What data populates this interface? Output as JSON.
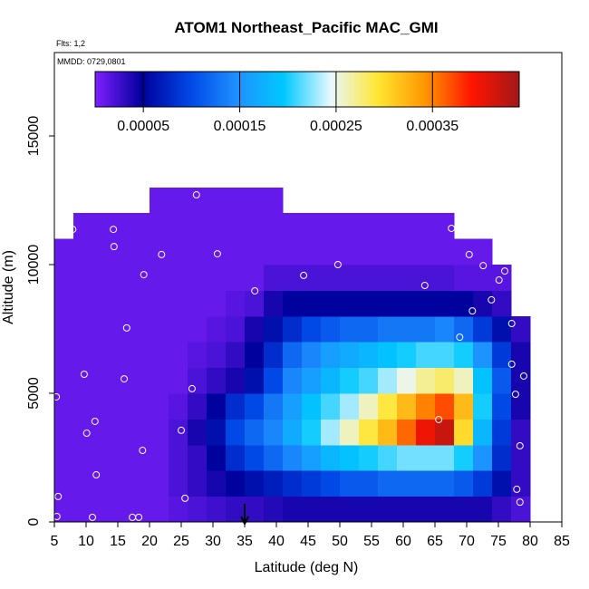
{
  "chart_data": {
    "type": "heatmap",
    "title": "ATOM1 Northeast_Pacific MAC_GMI",
    "annotations": [
      "Flts: 1,2",
      "MMDD: 0729,0801"
    ],
    "xlabel": "Latitude (deg N)",
    "ylabel": "Altitude (m)",
    "xlim": [
      5,
      85
    ],
    "ylim": [
      0,
      18240
    ],
    "xticks": [
      5,
      10,
      15,
      20,
      25,
      30,
      35,
      40,
      45,
      50,
      55,
      60,
      65,
      70,
      75,
      80,
      85
    ],
    "yticks": [
      0,
      5000,
      10000,
      15000
    ],
    "xbins": [
      5,
      8,
      11,
      14,
      17,
      20,
      23,
      26,
      29,
      32,
      35,
      38,
      41,
      44,
      47,
      50,
      53,
      56,
      59,
      62,
      65,
      68,
      71,
      74,
      77,
      80
    ],
    "ybins": [
      0,
      1000,
      2000,
      3000,
      4000,
      5000,
      6000,
      7000,
      8000,
      9000,
      10000,
      11000,
      12000,
      13000
    ],
    "z": [
      [
        1e-05,
        1e-05,
        1e-05,
        1e-05,
        1e-05,
        1e-05,
        1.5e-05,
        2e-05,
        2.5e-05,
        3e-05,
        3e-05,
        3.5e-05,
        4e-05,
        4e-05,
        4e-05,
        4e-05,
        4e-05,
        4e-05,
        4e-05,
        4e-05,
        4e-05,
        4e-05,
        4e-05,
        3e-05,
        2e-05
      ],
      [
        1e-05,
        1e-05,
        1e-05,
        1e-05,
        1e-05,
        1e-05,
        2e-05,
        3e-05,
        4e-05,
        5e-05,
        6e-05,
        7e-05,
        8e-05,
        9e-05,
        0.0001,
        0.00011,
        0.00011,
        0.00012,
        0.00012,
        0.00012,
        0.00012,
        0.00011,
        9e-05,
        6e-05,
        3e-05
      ],
      [
        1e-05,
        1e-05,
        1e-05,
        1e-05,
        1e-05,
        1e-05,
        2e-05,
        3e-05,
        5e-05,
        8e-05,
        0.0001,
        0.00012,
        0.00014,
        0.00016,
        0.00018,
        0.00019,
        0.0002,
        0.00021,
        0.00022,
        0.00022,
        0.00022,
        0.0002,
        0.00015,
        8e-05,
        3e-05
      ],
      [
        1e-05,
        1e-05,
        1e-05,
        1e-05,
        1e-05,
        1e-05,
        2e-05,
        4e-05,
        6e-05,
        0.0001,
        0.00012,
        0.00014,
        0.00017,
        0.0002,
        0.00023,
        0.00026,
        0.00029,
        0.00032,
        0.00036,
        0.0004,
        0.00042,
        0.0003,
        0.00018,
        9e-05,
        3e-05
      ],
      [
        1e-05,
        1e-05,
        1e-05,
        1e-05,
        1e-05,
        1e-05,
        1.5e-05,
        3e-05,
        5e-05,
        8e-05,
        0.0001,
        0.00013,
        0.00016,
        0.00019,
        0.00021,
        0.00023,
        0.00026,
        0.00029,
        0.00032,
        0.00035,
        0.00037,
        0.00032,
        0.0002,
        0.0001,
        4e-05
      ],
      [
        1e-05,
        1e-05,
        1e-05,
        1e-05,
        1e-05,
        1e-05,
        1e-05,
        2e-05,
        3e-05,
        4e-05,
        6e-05,
        0.0001,
        0.00014,
        0.00016,
        0.00018,
        0.0002,
        0.00021,
        0.00023,
        0.00025,
        0.00027,
        0.00028,
        0.00026,
        0.00019,
        0.00011,
        4e-05
      ],
      [
        1e-05,
        1e-05,
        1e-05,
        1e-05,
        1e-05,
        1e-05,
        1e-05,
        1.5e-05,
        2e-05,
        3e-05,
        5e-05,
        8e-05,
        0.00012,
        0.00014,
        0.00016,
        0.00017,
        0.00018,
        0.00019,
        0.0002,
        0.00021,
        0.00021,
        0.0002,
        0.00015,
        9e-05,
        4e-05
      ],
      [
        1e-05,
        1e-05,
        1e-05,
        1e-05,
        1e-05,
        1e-05,
        1e-05,
        1e-05,
        1.5e-05,
        2e-05,
        4e-05,
        6e-05,
        8e-05,
        0.0001,
        0.00011,
        0.00012,
        0.00012,
        0.00013,
        0.00013,
        0.00013,
        0.00014,
        0.00012,
        9e-05,
        6e-05,
        3e-05
      ],
      [
        1e-05,
        1e-05,
        1e-05,
        1e-05,
        1e-05,
        1e-05,
        1e-05,
        1e-05,
        1e-05,
        1.5e-05,
        2e-05,
        4e-05,
        5e-05,
        5e-05,
        5e-05,
        5e-05,
        5e-05,
        5e-05,
        5e-05,
        5e-05,
        5e-05,
        5e-05,
        4e-05,
        3e-05,
        null
      ],
      [
        1e-05,
        1e-05,
        1e-05,
        1e-05,
        1e-05,
        1e-05,
        1e-05,
        1e-05,
        1e-05,
        1e-05,
        1e-05,
        2e-05,
        2e-05,
        2e-05,
        2e-05,
        2e-05,
        2e-05,
        2e-05,
        2e-05,
        2e-05,
        2e-05,
        1.5e-05,
        1.5e-05,
        1.5e-05,
        null
      ],
      [
        1e-05,
        1e-05,
        1e-05,
        1e-05,
        1e-05,
        1e-05,
        1e-05,
        1e-05,
        1e-05,
        1e-05,
        1e-05,
        1e-05,
        1e-05,
        1e-05,
        1e-05,
        1e-05,
        1e-05,
        1e-05,
        1e-05,
        1e-05,
        1e-05,
        1e-05,
        1e-05,
        null,
        null
      ],
      [
        null,
        1e-05,
        1e-05,
        1e-05,
        1e-05,
        1e-05,
        1e-05,
        1e-05,
        1e-05,
        1e-05,
        1e-05,
        1e-05,
        1e-05,
        1e-05,
        1e-05,
        1e-05,
        1e-05,
        1e-05,
        1e-05,
        1e-05,
        1e-05,
        null,
        null,
        null,
        null
      ],
      [
        null,
        null,
        null,
        null,
        null,
        1e-05,
        1e-05,
        1e-05,
        1e-05,
        1e-05,
        1e-05,
        1e-05,
        null,
        null,
        null,
        null,
        null,
        null,
        null,
        null,
        null,
        null,
        null,
        null,
        null
      ]
    ],
    "zlim": [
      0,
      0.00044
    ],
    "zticks": [
      5e-05,
      0.00015,
      0.00025,
      0.00035
    ],
    "colormap": [
      "#7f1fff",
      "#00009c",
      "#0046e6",
      "#1e90ff",
      "#00c8ff",
      "#e8f8ff",
      "#ffe632",
      "#ff9600",
      "#ff1400",
      "#a01818"
    ],
    "points": {
      "x": [
        7.9,
        14.3,
        14.4,
        27.4,
        21.9,
        30.7,
        19.1,
        49.7,
        44.3,
        36.6,
        63.4,
        67.6,
        70.4,
        72.6,
        76.0,
        75.1,
        73.9,
        70.9,
        77.1,
        68.9,
        77.1,
        79.0,
        77.7,
        5.3,
        9.7,
        16.0,
        16.4,
        26.7,
        65.6,
        11.4,
        10.1,
        25.0,
        18.9,
        11.6,
        78.4,
        77.9,
        78.4,
        5.6,
        25.6,
        5.4,
        11.0,
        17.3,
        18.3
      ],
      "y": [
        11370,
        11370,
        10700,
        12710,
        10390,
        10420,
        9610,
        10000,
        9580,
        8980,
        9190,
        11410,
        10390,
        9960,
        9750,
        9400,
        8630,
        8200,
        7710,
        7180,
        6130,
        5670,
        4960,
        4860,
        5740,
        5560,
        7540,
        5180,
        3980,
        3910,
        3450,
        3560,
        2780,
        1830,
        2960,
        1270,
        770,
        990,
        920,
        210,
        180,
        180,
        180
      ]
    },
    "arrow_x": 35
  }
}
